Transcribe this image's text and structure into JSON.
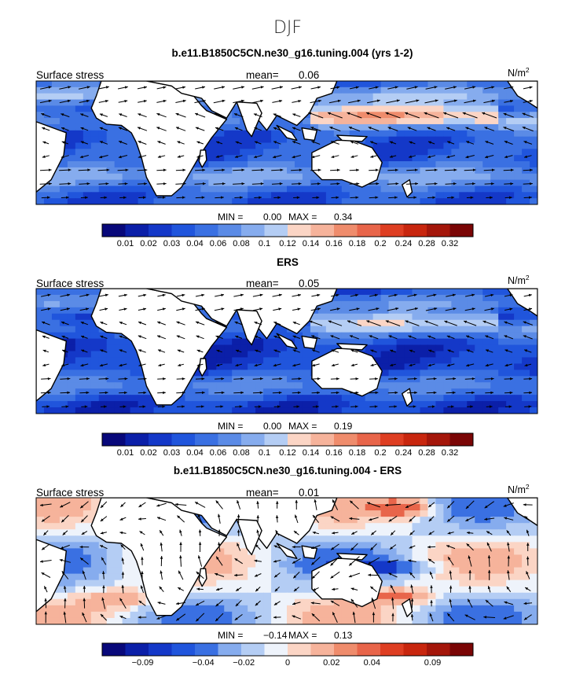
{
  "season": "DJF",
  "colors": {
    "blues": [
      "#08087a",
      "#0b1fa8",
      "#1438c8",
      "#2055dc",
      "#3a70e2",
      "#5b8be6",
      "#86acee",
      "#b4cdf4"
    ],
    "reds": [
      "#fbd5c5",
      "#f6b39b",
      "#ef8c6c",
      "#e8654a",
      "#de3e22",
      "#c8260e",
      "#a4160a",
      "#7a0505"
    ],
    "white": "#eef3fb",
    "land": "#ffffff",
    "coast": "#000000",
    "arrow": "#000000"
  },
  "chart_data": [
    {
      "type": "heatmap",
      "title": "b.e11.B1850C5CN.ne30_g16.tuning.004 (yrs 1-2)",
      "variable": "Surface stress",
      "mean_label": "mean=",
      "mean": "0.06",
      "units": "N/m",
      "units_sup": "2",
      "min_label": "MIN =",
      "min": "0.00",
      "max_label": "MAX =",
      "max": "0.34",
      "colorbar_labels": [
        "0.01",
        "0.02",
        "0.03",
        "0.04",
        "0.06",
        "0.08",
        "0.1",
        "0.12",
        "0.14",
        "0.16",
        "0.18",
        "0.2",
        "0.24",
        "0.28",
        "0.32"
      ]
    },
    {
      "type": "heatmap",
      "title": "ERS",
      "variable": "Surface stress",
      "mean_label": "mean=",
      "mean": "0.05",
      "units": "N/m",
      "units_sup": "2",
      "min_label": "MIN =",
      "min": "0.00",
      "max_label": "MAX =",
      "max": "0.19",
      "colorbar_labels": [
        "0.01",
        "0.02",
        "0.03",
        "0.04",
        "0.06",
        "0.08",
        "0.1",
        "0.12",
        "0.14",
        "0.16",
        "0.18",
        "0.2",
        "0.24",
        "0.28",
        "0.32"
      ]
    },
    {
      "type": "heatmap",
      "title": "b.e11.B1850C5CN.ne30_g16.tuning.004 - ERS",
      "variable": "Surface stress",
      "mean_label": "mean=",
      "mean": "0.01",
      "units": "N/m",
      "units_sup": "2",
      "min_label": "MIN =",
      "min": "−0.14",
      "max_label": "MAX =",
      "max": "0.13",
      "colorbar_labels": [
        "−0.09",
        "−0.04",
        "−0.02",
        "0",
        "0.02",
        "0.04",
        "0.09"
      ]
    }
  ]
}
